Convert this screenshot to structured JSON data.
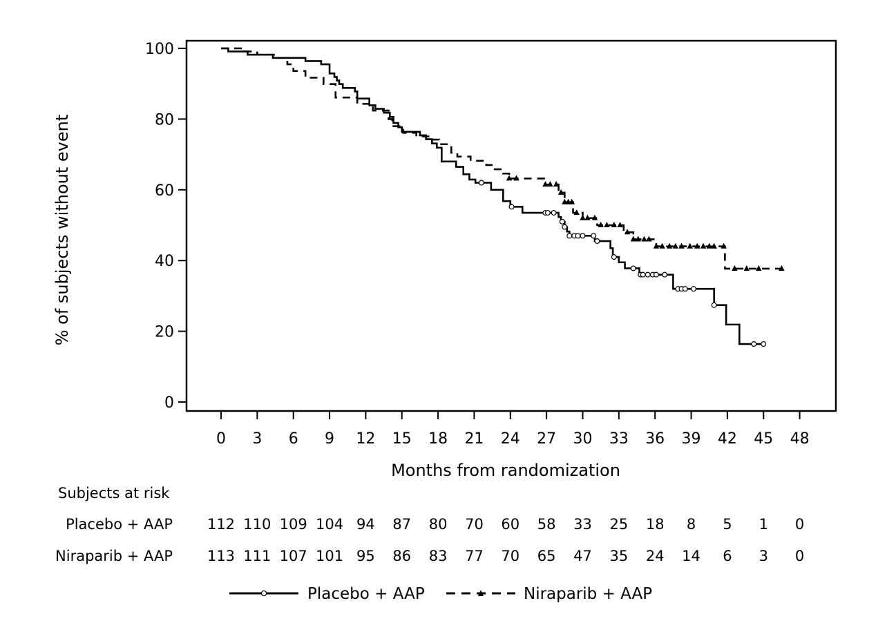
{
  "chart_data": {
    "type": "line",
    "xlabel": "Months from randomization",
    "ylabel": "% of subjects without event",
    "xlim": [
      0,
      48
    ],
    "ylim": [
      0,
      100
    ],
    "x_ticks": [
      0,
      3,
      6,
      9,
      12,
      15,
      18,
      21,
      24,
      27,
      30,
      33,
      36,
      39,
      42,
      45,
      48
    ],
    "y_ticks": [
      0,
      20,
      40,
      60,
      80,
      100
    ],
    "grid": false,
    "legend_position": "bottom",
    "series": [
      {
        "name": "Placebo + AAP",
        "line_style": "solid",
        "marker": "open-circle",
        "color": "#000000",
        "steps": [
          [
            0,
            100
          ],
          [
            0.6,
            99.1
          ],
          [
            2.2,
            98.2
          ],
          [
            4.3,
            97.3
          ],
          [
            7.0,
            96.4
          ],
          [
            8.3,
            95.5
          ],
          [
            9.0,
            92.9
          ],
          [
            9.4,
            91.9
          ],
          [
            9.6,
            90.9
          ],
          [
            9.8,
            89.9
          ],
          [
            10.1,
            88.8
          ],
          [
            11.1,
            87.8
          ],
          [
            11.3,
            85.8
          ],
          [
            12.3,
            83.9
          ],
          [
            12.8,
            82.9
          ],
          [
            13.5,
            81.8
          ],
          [
            14.0,
            80.6
          ],
          [
            14.3,
            78.9
          ],
          [
            14.7,
            77.7
          ],
          [
            15.0,
            76.4
          ],
          [
            16.5,
            75.4
          ],
          [
            17.0,
            74.3
          ],
          [
            17.5,
            73.1
          ],
          [
            17.9,
            71.9
          ],
          [
            18.3,
            68.0
          ],
          [
            19.5,
            66.5
          ],
          [
            20.1,
            64.4
          ],
          [
            20.6,
            62.9
          ],
          [
            21.1,
            62.0
          ],
          [
            22.4,
            60.0
          ],
          [
            23.4,
            56.8
          ],
          [
            24.0,
            55.2
          ],
          [
            25.0,
            53.5
          ],
          [
            28.0,
            52.3
          ],
          [
            28.2,
            51.0
          ],
          [
            28.5,
            49.5
          ],
          [
            28.7,
            48.2
          ],
          [
            28.9,
            47.0
          ],
          [
            31.0,
            45.5
          ],
          [
            32.3,
            43.5
          ],
          [
            32.5,
            41.0
          ],
          [
            33.0,
            39.5
          ],
          [
            33.5,
            37.8
          ],
          [
            34.7,
            36.0
          ],
          [
            37.5,
            32.0
          ],
          [
            40.9,
            27.4
          ],
          [
            41.9,
            21.9
          ],
          [
            43.0,
            16.4
          ],
          [
            45.2,
            16.4
          ]
        ],
        "censor_times": [
          21.6,
          24.1,
          26.9,
          27.1,
          27.6,
          28.3,
          28.5,
          28.9,
          29.3,
          29.6,
          30.0,
          30.9,
          31.2,
          32.6,
          34.2,
          34.8,
          35.0,
          35.4,
          35.8,
          36.1,
          36.8,
          37.9,
          38.2,
          38.5,
          39.2,
          40.9,
          44.2,
          45.0
        ]
      },
      {
        "name": "Niraparib + AAP",
        "line_style": "dashed",
        "marker": "filled-triangle",
        "color": "#000000",
        "steps": [
          [
            0,
            100
          ],
          [
            2.0,
            99.1
          ],
          [
            3.0,
            98.2
          ],
          [
            4.5,
            97.3
          ],
          [
            5.5,
            95.5
          ],
          [
            6.0,
            93.6
          ],
          [
            7.0,
            91.7
          ],
          [
            8.5,
            89.9
          ],
          [
            9.5,
            86.1
          ],
          [
            11.3,
            84.3
          ],
          [
            12.6,
            82.4
          ],
          [
            13.9,
            80.0
          ],
          [
            14.2,
            78.0
          ],
          [
            15.1,
            76.1
          ],
          [
            16.2,
            75.1
          ],
          [
            17.2,
            74.2
          ],
          [
            18.1,
            72.9
          ],
          [
            19.1,
            70.5
          ],
          [
            19.6,
            69.4
          ],
          [
            20.7,
            68.2
          ],
          [
            22.0,
            67.0
          ],
          [
            22.6,
            65.8
          ],
          [
            23.4,
            64.6
          ],
          [
            23.9,
            63.2
          ],
          [
            26.8,
            61.5
          ],
          [
            28.0,
            59.2
          ],
          [
            28.5,
            56.5
          ],
          [
            29.2,
            53.5
          ],
          [
            30.0,
            52.0
          ],
          [
            31.2,
            50.0
          ],
          [
            33.4,
            48.0
          ],
          [
            34.2,
            46.0
          ],
          [
            36.1,
            44.0
          ],
          [
            41.8,
            37.7
          ],
          [
            47.0,
            37.7
          ]
        ],
        "censor_times": [
          23.9,
          24.5,
          26.9,
          27.3,
          27.8,
          28.2,
          28.5,
          28.8,
          29.1,
          29.5,
          30.0,
          30.4,
          31.0,
          31.5,
          32.0,
          32.6,
          33.1,
          33.7,
          34.2,
          34.6,
          35.1,
          35.5,
          36.1,
          36.6,
          37.2,
          37.7,
          38.2,
          38.9,
          39.5,
          40.0,
          40.5,
          40.9,
          41.7,
          42.6,
          43.6,
          44.6,
          46.5
        ]
      }
    ],
    "at_risk": {
      "title": "Subjects at risk",
      "times": [
        0,
        3,
        6,
        9,
        12,
        15,
        18,
        21,
        24,
        27,
        30,
        33,
        36,
        39,
        42,
        45,
        48
      ],
      "rows": [
        {
          "label": "Placebo + AAP",
          "values": [
            "112",
            "110",
            "109",
            "104",
            "94",
            "87",
            "80",
            "70",
            "60",
            "58",
            "33",
            "25",
            "18",
            "8",
            "5",
            "1",
            "0"
          ]
        },
        {
          "label": "Niraparib + AAP",
          "values": [
            "113",
            "111",
            "107",
            "101",
            "95",
            "86",
            "83",
            "77",
            "70",
            "65",
            "47",
            "35",
            "24",
            "14",
            "6",
            "3",
            "0"
          ]
        }
      ]
    }
  }
}
